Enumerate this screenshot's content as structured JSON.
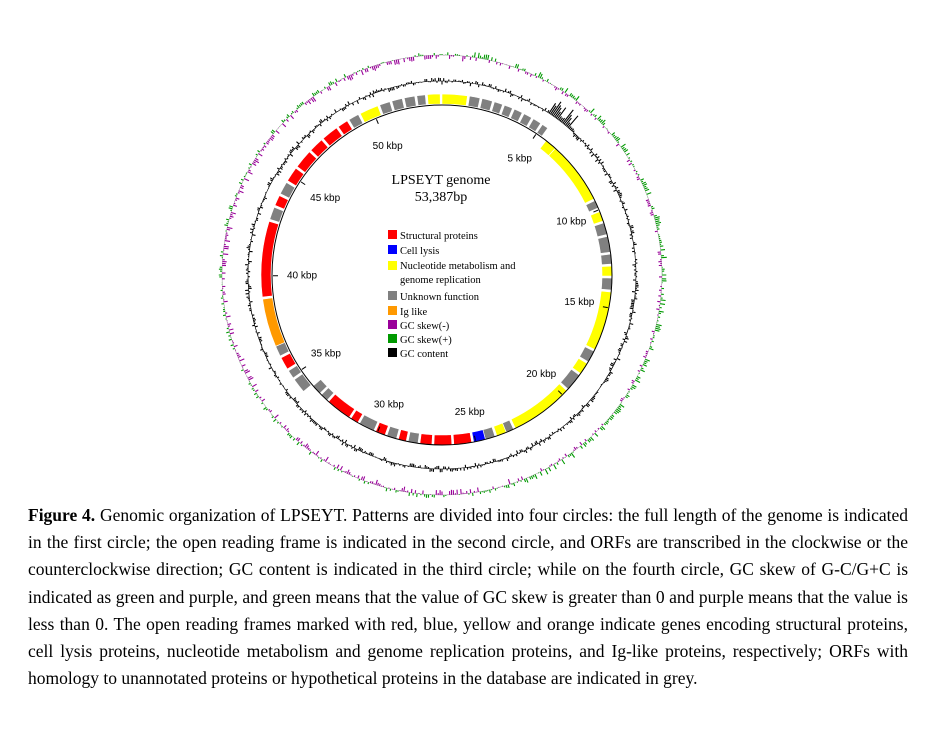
{
  "figure": {
    "genome_title": "LPSEYT genome",
    "genome_length_label": "53,387bp",
    "genome_length": 53387,
    "tick_labels": [
      "5 kbp",
      "10 kbp",
      "15 kbp",
      "20 kbp",
      "25 kbp",
      "30 kbp",
      "35 kbp",
      "40 kbp",
      "45 kbp",
      "50 kbp"
    ],
    "tick_positions_kbp": [
      5,
      10,
      15,
      20,
      25,
      30,
      35,
      40,
      45,
      50
    ],
    "legend": [
      {
        "label": "Structural proteins",
        "color": "#ff0000"
      },
      {
        "label": "Cell lysis",
        "color": "#0000ff"
      },
      {
        "label": "Nucleotide metabolism and",
        "label2": "genome replication",
        "color": "#ffff00"
      },
      {
        "label": "Unknown function",
        "color": "#808080"
      },
      {
        "label": "Ig like",
        "color": "#ff9900"
      },
      {
        "label": "GC skew(-)",
        "color": "#990099"
      },
      {
        "label": "GC skew(+)",
        "color": "#009900"
      },
      {
        "label": "GC content",
        "color": "#000000"
      }
    ],
    "orfs": [
      {
        "s": 0.0,
        "e": 1.2,
        "c": "#ffff00",
        "o": "o"
      },
      {
        "s": 1.3,
        "e": 1.8,
        "c": "#808080",
        "o": "o"
      },
      {
        "s": 1.9,
        "e": 2.4,
        "c": "#808080",
        "o": "o"
      },
      {
        "s": 2.5,
        "e": 2.9,
        "c": "#808080",
        "o": "o"
      },
      {
        "s": 3.0,
        "e": 3.4,
        "c": "#808080",
        "o": "o"
      },
      {
        "s": 3.5,
        "e": 3.9,
        "c": "#808080",
        "o": "o"
      },
      {
        "s": 4.0,
        "e": 4.4,
        "c": "#808080",
        "o": "o"
      },
      {
        "s": 4.5,
        "e": 4.9,
        "c": "#808080",
        "o": "o"
      },
      {
        "s": 5.0,
        "e": 5.3,
        "c": "#808080",
        "o": "o"
      },
      {
        "s": 5.6,
        "e": 6.2,
        "c": "#ffff00",
        "o": "i"
      },
      {
        "s": 6.2,
        "e": 9.4,
        "c": "#ffff00",
        "o": "i"
      },
      {
        "s": 9.5,
        "e": 9.9,
        "c": "#808080",
        "o": "i"
      },
      {
        "s": 10.1,
        "e": 10.6,
        "c": "#ffff00",
        "o": "i"
      },
      {
        "s": 10.7,
        "e": 11.3,
        "c": "#808080",
        "o": "i"
      },
      {
        "s": 11.4,
        "e": 12.2,
        "c": "#808080",
        "o": "i"
      },
      {
        "s": 12.3,
        "e": 12.8,
        "c": "#808080",
        "o": "i"
      },
      {
        "s": 12.9,
        "e": 13.4,
        "c": "#ffff00",
        "o": "i"
      },
      {
        "s": 13.5,
        "e": 14.1,
        "c": "#808080",
        "o": "i"
      },
      {
        "s": 14.2,
        "e": 17.2,
        "c": "#ffff00",
        "o": "i"
      },
      {
        "s": 17.3,
        "e": 17.9,
        "c": "#808080",
        "o": "i"
      },
      {
        "s": 18.0,
        "e": 18.6,
        "c": "#ffff00",
        "o": "i"
      },
      {
        "s": 18.7,
        "e": 19.6,
        "c": "#808080",
        "o": "i"
      },
      {
        "s": 19.7,
        "e": 22.9,
        "c": "#ffff00",
        "o": "i"
      },
      {
        "s": 23.0,
        "e": 23.4,
        "c": "#808080",
        "o": "i"
      },
      {
        "s": 23.4,
        "e": 23.9,
        "c": "#ffff00",
        "o": "i"
      },
      {
        "s": 24.0,
        "e": 24.5,
        "c": "#808080",
        "o": "i"
      },
      {
        "s": 24.5,
        "e": 25.1,
        "c": "#0000ff",
        "o": "i"
      },
      {
        "s": 25.2,
        "e": 26.1,
        "c": "#ff0000",
        "o": "i"
      },
      {
        "s": 26.2,
        "e": 27.1,
        "c": "#ff0000",
        "o": "i"
      },
      {
        "s": 27.2,
        "e": 27.8,
        "c": "#ff0000",
        "o": "i"
      },
      {
        "s": 27.9,
        "e": 28.4,
        "c": "#808080",
        "o": "i"
      },
      {
        "s": 28.5,
        "e": 28.9,
        "c": "#ff0000",
        "o": "i"
      },
      {
        "s": 29.0,
        "e": 29.5,
        "c": "#808080",
        "o": "i"
      },
      {
        "s": 29.6,
        "e": 30.1,
        "c": "#ff0000",
        "o": "i"
      },
      {
        "s": 30.2,
        "e": 31.0,
        "c": "#808080",
        "o": "i"
      },
      {
        "s": 31.1,
        "e": 31.5,
        "c": "#ff0000",
        "o": "i"
      },
      {
        "s": 31.6,
        "e": 32.9,
        "c": "#ff0000",
        "o": "i"
      },
      {
        "s": 33.0,
        "e": 33.4,
        "c": "#808080",
        "o": "i"
      },
      {
        "s": 33.5,
        "e": 34.0,
        "c": "#808080",
        "o": "i"
      },
      {
        "s": 34.1,
        "e": 34.8,
        "c": "#808080",
        "o": "o"
      },
      {
        "s": 34.9,
        "e": 35.3,
        "c": "#808080",
        "o": "o"
      },
      {
        "s": 35.4,
        "e": 36.0,
        "c": "#ff0000",
        "o": "o"
      },
      {
        "s": 36.1,
        "e": 36.6,
        "c": "#808080",
        "o": "o"
      },
      {
        "s": 36.6,
        "e": 38.9,
        "c": "#ff9900",
        "o": "o"
      },
      {
        "s": 39.0,
        "e": 42.6,
        "c": "#ff0000",
        "o": "o"
      },
      {
        "s": 42.7,
        "e": 43.3,
        "c": "#808080",
        "o": "o"
      },
      {
        "s": 43.4,
        "e": 43.9,
        "c": "#ff0000",
        "o": "o"
      },
      {
        "s": 44.0,
        "e": 44.6,
        "c": "#808080",
        "o": "o"
      },
      {
        "s": 44.7,
        "e": 45.4,
        "c": "#ff0000",
        "o": "o"
      },
      {
        "s": 45.5,
        "e": 46.4,
        "c": "#ff0000",
        "o": "o"
      },
      {
        "s": 46.5,
        "e": 47.2,
        "c": "#ff0000",
        "o": "o"
      },
      {
        "s": 47.3,
        "e": 48.1,
        "c": "#ff0000",
        "o": "o"
      },
      {
        "s": 48.2,
        "e": 48.7,
        "c": "#ff0000",
        "o": "o"
      },
      {
        "s": 48.8,
        "e": 49.3,
        "c": "#808080",
        "o": "o"
      },
      {
        "s": 49.4,
        "e": 50.3,
        "c": "#ffff00",
        "o": "o"
      },
      {
        "s": 50.4,
        "e": 50.9,
        "c": "#808080",
        "o": "o"
      },
      {
        "s": 51.0,
        "e": 51.5,
        "c": "#808080",
        "o": "o"
      },
      {
        "s": 51.6,
        "e": 52.1,
        "c": "#808080",
        "o": "o"
      },
      {
        "s": 52.2,
        "e": 52.6,
        "c": "#808080",
        "o": "o"
      },
      {
        "s": 52.7,
        "e": 53.3,
        "c": "#ffff00",
        "o": "o"
      }
    ]
  },
  "caption": {
    "label": "Figure 4.",
    "text": "Genomic organization of LPSEYT. Patterns are divided into four circles: the full length of the genome is indicated in the first circle; the open reading frame is indicated in the second circle, and ORFs are transcribed in the clockwise or the counterclockwise direction; GC content is indicated in the third circle; while on the fourth circle, GC skew of G-C/G+C is indicated as green and purple, and green means that the value of GC skew is greater than 0 and purple means that the value is less than 0. The open reading frames marked with red, blue, yellow and orange indicate genes encoding structural proteins, cell lysis proteins, nucleotide metabolism and genome replication proteins, and Ig-like proteins, respectively; ORFs with homology to unannotated proteins or hypothetical proteins in the database are indicated in grey."
  }
}
